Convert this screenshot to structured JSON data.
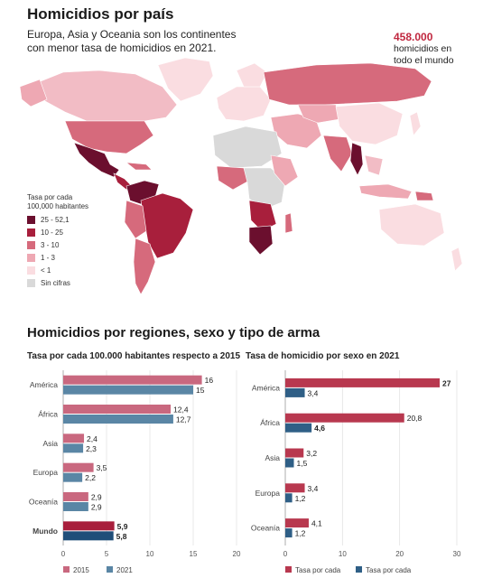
{
  "map_section": {
    "title": "Homicidios por país",
    "subtitle_line1": "Europa, Asia y Oceania son los continentes",
    "subtitle_line2": "con menor tasa de homicidios en 2021.",
    "total_value": "458.000",
    "total_line1": "homicidios en",
    "total_line2": "todo el mundo",
    "legend_title_line1": "Tasa por cada",
    "legend_title_line2": "100,000 habitantes",
    "legend": [
      {
        "label": "25 - 52,1",
        "color": "#6b0f2e"
      },
      {
        "label": "10 - 25",
        "color": "#a81f3c"
      },
      {
        "label": "3 - 10",
        "color": "#d66a7c"
      },
      {
        "label": "1 - 3",
        "color": "#eea8b3"
      },
      {
        "label": "< 1",
        "color": "#fadde1"
      },
      {
        "label": "Sin cifras",
        "color": "#d9d9d9"
      }
    ]
  },
  "bars_section": {
    "title": "Homicidios por regiones, sexo y tipo de arma"
  },
  "chart_data": [
    {
      "type": "bar",
      "orientation": "horizontal",
      "title": "Tasa por cada 100.000 habitantes respecto a 2015",
      "categories": [
        "América",
        "África",
        "Asia",
        "Europa",
        "Oceanía",
        "Mundo"
      ],
      "series": [
        {
          "name": "2015",
          "color": "#c9687f",
          "values": [
            16,
            12.4,
            2.4,
            3.5,
            2.9,
            5.9
          ],
          "labels": [
            "16",
            "12,4",
            "2,4",
            "3,5",
            "2,9",
            "5,9"
          ]
        },
        {
          "name": "2021",
          "color": "#5a86a5",
          "values": [
            15,
            12.7,
            2.3,
            2.2,
            2.9,
            5.8
          ],
          "labels": [
            "15",
            "12,7",
            "2,3",
            "2,2",
            "2,9",
            "5,8"
          ]
        }
      ],
      "highlight_category": "Mundo",
      "highlight_colors": [
        "#a81f3c",
        "#1f4e79"
      ],
      "xlim": [
        0,
        20
      ],
      "xticks": [
        0,
        5,
        10,
        15,
        20
      ],
      "grid": true
    },
    {
      "type": "bar",
      "orientation": "horizontal",
      "title": "Tasa de homicidio por sexo en 2021",
      "categories": [
        "América",
        "África",
        "Asia",
        "Europa",
        "Oceanía"
      ],
      "series": [
        {
          "name": "Tasa por cada",
          "color": "#b8384f",
          "values": [
            27,
            20.8,
            3.2,
            3.4,
            4.1
          ],
          "labels": [
            "27",
            "20,8",
            "3,2",
            "3,4",
            "4,1"
          ]
        },
        {
          "name": "Tasa por cada",
          "color": "#2f5f86",
          "values": [
            3.4,
            4.6,
            1.5,
            1.2,
            1.2
          ],
          "labels": [
            "3,4",
            "4,6",
            "1,5",
            "1,2",
            "1,2"
          ]
        }
      ],
      "bold_labels": [
        "27",
        "4,6"
      ],
      "xlim": [
        0,
        30
      ],
      "xticks": [
        0,
        10,
        20,
        30
      ],
      "grid": true
    }
  ]
}
